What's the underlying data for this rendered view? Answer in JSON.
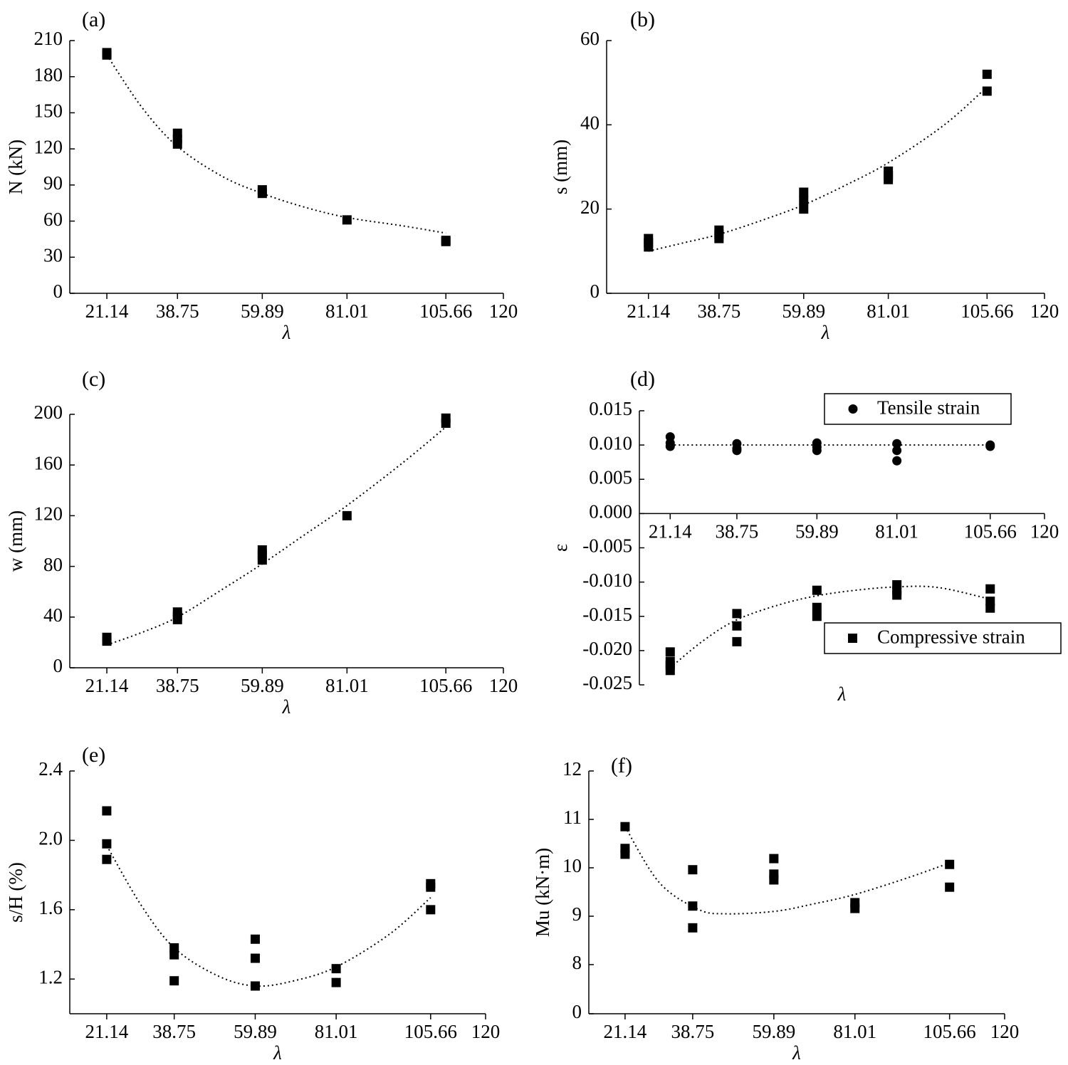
{
  "chart_data": [
    {
      "type": "scatter",
      "panel_label": "(a)",
      "xlabel": "λ",
      "ylabel": "N (kN)",
      "color": "#000000",
      "xlim": [
        11.9,
        120
      ],
      "xticks": [
        21.14,
        38.75,
        59.89,
        81.01,
        105.66,
        120
      ],
      "ylim": [
        0,
        210
      ],
      "yticks": [
        0,
        30,
        60,
        90,
        120,
        150,
        180,
        210
      ],
      "series": [
        {
          "marker": "square",
          "x": [
            21.14,
            21.14,
            38.75,
            38.75,
            38.75,
            59.89,
            59.89,
            81.01,
            105.66,
            105.66
          ],
          "values": [
            200,
            198,
            133,
            128,
            124,
            86,
            83,
            61,
            44,
            43
          ]
        }
      ],
      "trend": {
        "x": [
          21.14,
          30,
          38.75,
          50,
          59.89,
          70,
          81.01,
          95,
          105.66
        ],
        "values": [
          198,
          154,
          122,
          97,
          83,
          72,
          63,
          56,
          50
        ]
      }
    },
    {
      "type": "scatter",
      "panel_label": "(b)",
      "xlabel": "λ",
      "ylabel": "s (mm)",
      "color": "#000000",
      "xlim": [
        10.7,
        120
      ],
      "xticks": [
        21.14,
        38.75,
        59.89,
        81.01,
        105.66,
        120
      ],
      "ylim": [
        0,
        60
      ],
      "yticks": [
        0,
        20,
        40,
        60
      ],
      "series": [
        {
          "marker": "square",
          "x": [
            21.14,
            21.14,
            21.14,
            38.75,
            38.75,
            38.75,
            59.89,
            59.89,
            59.89,
            81.01,
            81.01,
            81.01,
            105.66,
            105.66
          ],
          "values": [
            13,
            12,
            11,
            15,
            14,
            13,
            24,
            22,
            20,
            29,
            28,
            27,
            52,
            48
          ]
        }
      ],
      "trend": {
        "x": [
          21.14,
          30,
          38.75,
          50,
          59.89,
          70,
          81.01,
          95,
          105.66
        ],
        "values": [
          10,
          12,
          14,
          17.5,
          21,
          25.5,
          31,
          40,
          49
        ]
      }
    },
    {
      "type": "scatter",
      "panel_label": "(c)",
      "xlabel": "λ",
      "ylabel": "w (mm)",
      "color": "#000000",
      "xlim": [
        11.9,
        120
      ],
      "xticks": [
        21.14,
        38.75,
        59.89,
        81.01,
        105.66,
        120
      ],
      "ylim": [
        0,
        200
      ],
      "yticks": [
        0,
        40,
        80,
        120,
        160,
        200
      ],
      "series": [
        {
          "marker": "square",
          "x": [
            21.14,
            21.14,
            38.75,
            38.75,
            38.75,
            59.89,
            59.89,
            59.89,
            81.01,
            105.66,
            105.66
          ],
          "values": [
            24,
            21,
            44,
            41,
            38,
            93,
            89,
            85,
            120,
            197,
            193
          ]
        }
      ],
      "trend": {
        "x": [
          21.14,
          30,
          38.75,
          50,
          59.89,
          70,
          81.01,
          95,
          105.66
        ],
        "values": [
          18,
          28,
          40,
          62,
          82,
          104,
          128,
          162,
          190
        ]
      }
    },
    {
      "type": "scatter",
      "panel_label": "(d)",
      "xlabel": "λ",
      "ylabel": "ε",
      "color": "#000000",
      "xlim": [
        13,
        120
      ],
      "xticks": [
        21.14,
        38.75,
        59.89,
        81.01,
        105.66,
        120
      ],
      "ylim": [
        -0.025,
        0.015
      ],
      "yticks": [
        -0.025,
        {
          "value": -0.02,
          "label": "-0.020"
        },
        -0.015,
        {
          "value": -0.01,
          "label": "-0.010"
        },
        -0.005,
        {
          "value": 0,
          "label": "0.000"
        },
        0.005,
        {
          "value": 0.01,
          "label": "0.010"
        },
        0.015
      ],
      "series": [
        {
          "name": "Tensile strain",
          "marker": "circle",
          "x": [
            21.14,
            21.14,
            21.14,
            38.75,
            38.75,
            38.75,
            59.89,
            59.89,
            59.89,
            81.01,
            81.01,
            81.01,
            105.66,
            105.66
          ],
          "values": [
            0.0112,
            0.0103,
            0.0098,
            0.0102,
            0.0095,
            0.0092,
            0.0103,
            0.0097,
            0.0092,
            0.0102,
            0.0092,
            0.0077,
            0.01,
            0.0098
          ]
        },
        {
          "name": "Compressive strain",
          "marker": "square",
          "x": [
            21.14,
            21.14,
            21.14,
            21.14,
            38.75,
            38.75,
            38.75,
            59.89,
            59.89,
            59.89,
            81.01,
            81.01,
            81.01,
            105.66,
            105.66,
            105.66
          ],
          "values": [
            -0.0202,
            -0.0216,
            -0.0222,
            -0.0229,
            -0.0146,
            -0.0164,
            -0.0187,
            -0.0112,
            -0.0137,
            -0.015,
            -0.0104,
            -0.0112,
            -0.0119,
            -0.011,
            -0.0128,
            -0.0138
          ]
        }
      ],
      "trend": [
        {
          "x": [
            21.14,
            105.66
          ],
          "values": [
            0.01,
            0.01
          ]
        },
        {
          "x": [
            21.14,
            30,
            38.75,
            50,
            59.89,
            70,
            81.01,
            92,
            105.66
          ],
          "values": [
            -0.0225,
            -0.0185,
            -0.0155,
            -0.0133,
            -0.012,
            -0.0112,
            -0.0107,
            -0.0108,
            -0.0125
          ]
        }
      ]
    },
    {
      "type": "scatter",
      "panel_label": "(e)",
      "xlabel": "λ",
      "ylabel": "s/H (%)",
      "color": "#000000",
      "xlim": [
        11.5,
        120
      ],
      "xticks": [
        21.14,
        38.75,
        59.89,
        81.01,
        105.66,
        120
      ],
      "ylim": [
        1.0,
        2.4
      ],
      "yticks": [
        1.2,
        1.6,
        {
          "value": 2.0,
          "label": "2.0"
        },
        2.4
      ],
      "series": [
        {
          "marker": "square",
          "x": [
            21.14,
            21.14,
            21.14,
            38.75,
            38.75,
            38.75,
            59.89,
            59.89,
            59.89,
            81.01,
            81.01,
            105.66,
            105.66,
            105.66
          ],
          "values": [
            2.17,
            1.98,
            1.89,
            1.38,
            1.34,
            1.19,
            1.43,
            1.32,
            1.16,
            1.26,
            1.18,
            1.75,
            1.73,
            1.6
          ]
        }
      ],
      "trend": {
        "x": [
          21.14,
          30,
          38.75,
          50,
          59.89,
          70,
          81.01,
          95,
          105.66
        ],
        "values": [
          1.97,
          1.63,
          1.38,
          1.22,
          1.16,
          1.19,
          1.27,
          1.46,
          1.67
        ]
      }
    },
    {
      "type": "scatter",
      "panel_label": "(f)",
      "xlabel": "λ",
      "ylabel": "Mu (kN·m)",
      "color": "#000000",
      "xlim": [
        11.7,
        120
      ],
      "xticks": [
        21.14,
        38.75,
        59.89,
        81.01,
        105.66,
        120
      ],
      "ylim": [
        0,
        12
      ],
      "yticks": [
        0,
        8,
        9,
        10,
        11,
        12
      ],
      "ybreak": [
        0,
        8
      ],
      "series": [
        {
          "marker": "square",
          "x": [
            21.14,
            21.14,
            21.14,
            38.75,
            38.75,
            38.75,
            59.89,
            59.89,
            59.89,
            81.01,
            81.01,
            105.66,
            105.66
          ],
          "values": [
            10.85,
            10.4,
            10.28,
            9.96,
            9.21,
            8.76,
            10.19,
            9.87,
            9.75,
            9.28,
            9.16,
            10.07,
            9.6
          ]
        }
      ],
      "trend": {
        "x": [
          21.14,
          30,
          40,
          47,
          60,
          70,
          81.01,
          95,
          105.66
        ],
        "values": [
          10.85,
          9.7,
          9.15,
          9.05,
          9.1,
          9.25,
          9.45,
          9.8,
          10.1
        ]
      }
    }
  ]
}
